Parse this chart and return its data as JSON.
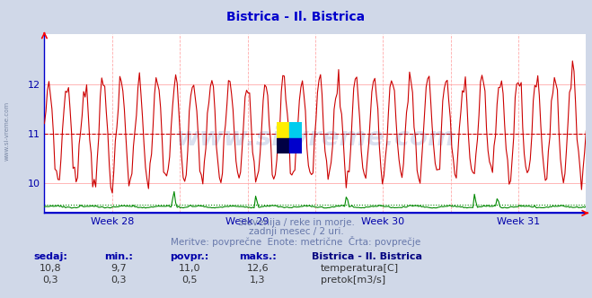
{
  "title": "Bistrica - Il. Bistrica",
  "title_color": "#0000cc",
  "bg_color": "#d0d8e8",
  "plot_bg_color": "#ffffff",
  "x_label_weeks": [
    "Week 28",
    "Week 29",
    "Week 30",
    "Week 31"
  ],
  "y_ticks": [
    10,
    11,
    12
  ],
  "y_min": 9.4,
  "y_max": 13.0,
  "temp_color": "#cc0000",
  "flow_color": "#008800",
  "height_color": "#0000cc",
  "temp_avg": 11.0,
  "flow_avg": 0.5,
  "grid_v_color": "#ffaaaa",
  "grid_h_color": "#ffaaaa",
  "n_points": 360,
  "subtitle1": "Slovenija / reke in morje.",
  "subtitle2": "zadnji mesec / 2 uri.",
  "subtitle3": "Meritve: povprečne  Enote: metrične  Črta: povprečje",
  "subtitle_color": "#6677aa",
  "label_sedaj": "sedaj:",
  "label_min": "min.:",
  "label_povpr": "povpr.:",
  "label_maks": "maks.:",
  "label_station": "Bistrica - Il. Bistrica",
  "temp_sedaj": "10,8",
  "temp_min": "9,7",
  "temp_povpr": "11,0",
  "temp_maks": "12,6",
  "flow_sedaj": "0,3",
  "flow_min": "0,3",
  "flow_povpr": "0,5",
  "flow_maks": "1,3",
  "label_temp": "temperatura[C]",
  "label_flow": "pretok[m3/s]",
  "watermark": "www.si-vreme.com",
  "watermark_color": "#3355aa",
  "watermark_alpha": 0.18,
  "axis_color": "#0000aa",
  "tick_color": "#0000aa",
  "left_spine_color": "#0000cc",
  "bottom_spine_color": "#0000cc",
  "icon_yellow": "#ffee00",
  "icon_cyan": "#00ccee",
  "icon_blue": "#0000cc",
  "icon_darkblue": "#000044"
}
